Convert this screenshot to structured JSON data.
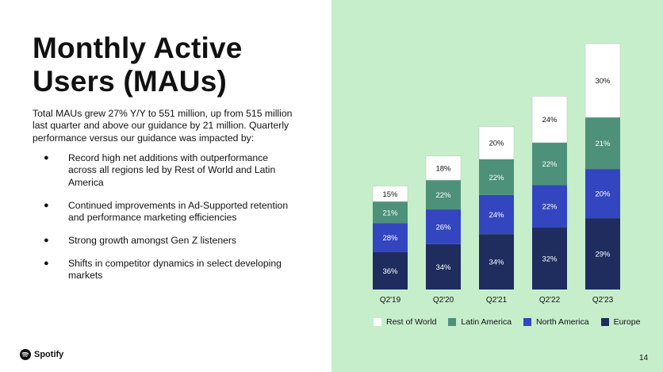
{
  "slide": {
    "title_lines": [
      "Monthly Active",
      "Users (MAUs)"
    ],
    "intro": "Total MAUs grew 27% Y/Y to 551 million, up from 515 million last quarter and above our guidance by 21 million. Quarterly performance versus our guidance was impacted by:",
    "bullets": [
      "Record high net additions with outperformance across all regions led by Rest of World and Latin America",
      "Continued improvements in Ad-Supported retention and performance marketing efficiencies",
      "Strong growth amongst Gen Z listeners",
      "Shifts in competitor dynamics in select developing markets"
    ],
    "bullet_symbol": "●",
    "logo_text": "Spotify",
    "logo_icon": "spotify-logo-icon",
    "page_number": "14"
  },
  "colors": {
    "background_right": "#c6eecb",
    "rest_of_world": "#ffffff",
    "latin_america": "#4d917a",
    "north_america": "#3346c0",
    "europe": "#1e2c5e"
  },
  "chart_data": {
    "type": "bar",
    "stacked": true,
    "categories": [
      "Q2'19",
      "Q2'20",
      "Q2'21",
      "Q2'22",
      "Q2'23"
    ],
    "series": [
      {
        "name": "Europe",
        "values": [
          36,
          34,
          34,
          32,
          29
        ],
        "labels": [
          "36%",
          "34%",
          "34%",
          "32%",
          "29%"
        ]
      },
      {
        "name": "North America",
        "values": [
          28,
          26,
          24,
          22,
          20
        ],
        "labels": [
          "28%",
          "26%",
          "24%",
          "22%",
          "20%"
        ]
      },
      {
        "name": "Latin America",
        "values": [
          21,
          22,
          22,
          22,
          21
        ],
        "labels": [
          "21%",
          "22%",
          "22%",
          "22%",
          "21%"
        ]
      },
      {
        "name": "Rest of World",
        "values": [
          15,
          18,
          20,
          24,
          30
        ],
        "labels": [
          "15%",
          "18%",
          "20%",
          "24%",
          "30%"
        ]
      }
    ],
    "total_maus_millions": [
      232,
      299,
      365,
      433,
      551
    ],
    "legend": [
      "Rest of World",
      "Latin America",
      "North America",
      "Europe"
    ],
    "legend_position": "bottom",
    "grid": false,
    "title": "",
    "xlabel": "",
    "ylabel": ""
  }
}
